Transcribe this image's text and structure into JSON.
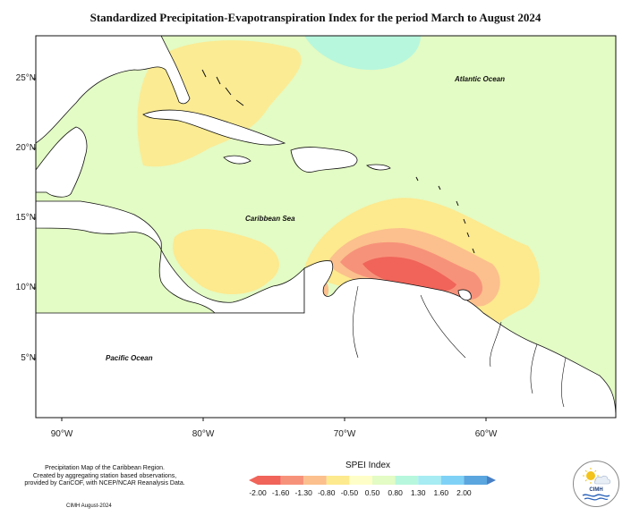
{
  "title": "Standardized Precipitation-Evapotranspiration Index for the period March to August 2024",
  "lat_labels": [
    "25°N",
    "20°N",
    "15°N",
    "10°N",
    "5°N"
  ],
  "lon_labels": [
    "90°W",
    "80°W",
    "70°W",
    "60°W"
  ],
  "labels": {
    "atlantic": "Atlantic Ocean",
    "caribbean": "Caribbean Sea",
    "pacific": "Pacific Ocean"
  },
  "legend": {
    "title": "SPEI Index",
    "ticks": [
      "-2.00",
      "-1.60",
      "-1.30",
      "-0.80",
      "-0.50",
      "0.50",
      "0.80",
      "1.30",
      "1.60",
      "2.00"
    ],
    "colors": [
      "#f0645a",
      "#f7927a",
      "#fbc08d",
      "#fde98e",
      "#e3fbc4",
      "#b7f7dd",
      "#a6ecf2",
      "#7fd2f6",
      "#5ba6df",
      "#4880c6"
    ]
  },
  "caption": {
    "line1": "Precipitation Map of the Caribbean Region.",
    "line2": "Created by aggregating station based observations,",
    "line3": "provided by CariCOF, with NCEP/NCAR Reanalysis Data."
  },
  "credit": "CIMH August-2024",
  "logo": {
    "text": "CIMH"
  },
  "colors": {
    "background": "#e3fbc4",
    "land": "#ffffff",
    "coast": "#111111",
    "dry_light": "#fde98e",
    "dry_mod": "#fbc08d",
    "dry_sev": "#f7927a",
    "dry_ext": "#f0645a",
    "wet_light": "#b7f7dd",
    "wet_mod": "#a6ecf2",
    "wet_sev": "#7fd2f6"
  }
}
